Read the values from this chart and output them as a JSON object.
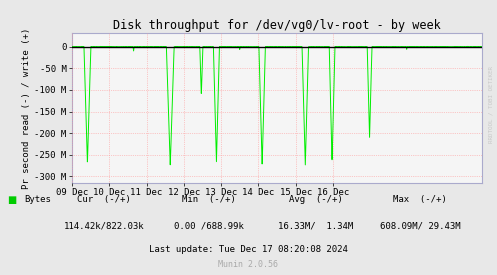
{
  "title": "Disk throughput for /dev/vg0/lv-root - by week",
  "ylabel": "Pr second read (-) / write (+)",
  "bg_color": "#E8E8E8",
  "plot_bg_color": "#F5F5F5",
  "grid_color": "#FF9999",
  "line_color": "#00EE00",
  "zero_line_color": "#000000",
  "spine_color": "#AAAACC",
  "ylim": [
    -315000000,
    31500000
  ],
  "yticks": [
    0,
    -50000000,
    -100000000,
    -150000000,
    -200000000,
    -250000000,
    -300000000
  ],
  "ytick_labels": [
    "0",
    "-50 M",
    "-100 M",
    "-150 M",
    "-200 M",
    "-250 M",
    "-300 M"
  ],
  "xstart": 1733702400,
  "xend": 1734652800,
  "xtick_positions": [
    1733702400,
    1733788800,
    1733875200,
    1733961600,
    1734048000,
    1734134400,
    1734220800,
    1734307200
  ],
  "xtick_labels": [
    "09 Dec",
    "10 Dec",
    "11 Dec",
    "12 Dec",
    "13 Dec",
    "14 Dec",
    "15 Dec",
    "16 Dec"
  ],
  "legend_label": "Bytes",
  "legend_color": "#00CC00",
  "footer_cur_label": "Cur  (-/+)",
  "footer_cur_val": "114.42k/822.03k",
  "footer_min_label": "Min  (-/+)",
  "footer_min_val": "0.00 /688.99k",
  "footer_avg_label": "Avg  (-/+)",
  "footer_avg_val": "16.33M/  1.34M",
  "footer_max_label": "Max  (-/+)",
  "footer_max_val": "608.09M/ 29.43M",
  "footer_last": "Last update: Tue Dec 17 08:20:08 2024",
  "munin_version": "Munin 2.0.56",
  "watermark": "RRDTOOL / TOBI OETIKER",
  "spike_data": [
    [
      1733738000,
      -270000000.0,
      16000
    ],
    [
      1733845000,
      -10000000.0,
      2500
    ],
    [
      1733930000,
      -275000000.0,
      18000
    ],
    [
      1734002000,
      -112000000.0,
      7000
    ],
    [
      1734037000,
      -268000000.0,
      14000
    ],
    [
      1734091000,
      -7000000.0,
      2000
    ],
    [
      1734143000,
      -275000000.0,
      15000
    ],
    [
      1734243000,
      -275000000.0,
      15000
    ],
    [
      1734305000,
      -268000000.0,
      13000
    ],
    [
      1734392000,
      -210000000.0,
      11000
    ],
    [
      1734478000,
      -7000000.0,
      2000
    ]
  ]
}
